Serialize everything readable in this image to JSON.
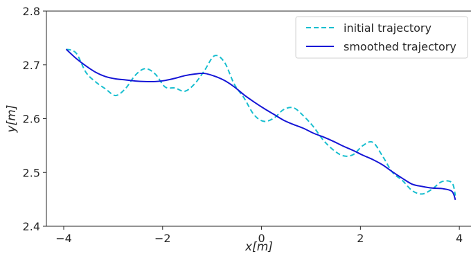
{
  "chart_data": {
    "type": "line",
    "title": "",
    "xlabel": "x[m]",
    "ylabel": "y[m]",
    "xlim": [
      -4.35,
      4.25
    ],
    "ylim": [
      2.4,
      2.8
    ],
    "xticks": [
      -4,
      -2,
      0,
      2,
      4
    ],
    "xtick_labels": [
      "−4",
      "−2",
      "0",
      "2",
      "4"
    ],
    "yticks": [
      2.4,
      2.5,
      2.6,
      2.7,
      2.8
    ],
    "ytick_labels": [
      "2.4",
      "2.5",
      "2.6",
      "2.7",
      "2.8"
    ],
    "grid": false,
    "legend_position": "top-right",
    "series": [
      {
        "name": "initial trajectory",
        "color": "#17becf",
        "style": "dashed",
        "x": [
          -3.95,
          -3.75,
          -3.55,
          -3.35,
          -3.15,
          -2.95,
          -2.75,
          -2.55,
          -2.35,
          -2.15,
          -1.95,
          -1.75,
          -1.55,
          -1.35,
          -1.15,
          -0.95,
          -0.75,
          -0.55,
          -0.35,
          -0.15,
          0.05,
          0.25,
          0.45,
          0.65,
          0.85,
          1.05,
          1.25,
          1.45,
          1.65,
          1.85,
          2.05,
          2.25,
          2.45,
          2.65,
          2.85,
          3.05,
          3.25,
          3.45,
          3.65,
          3.85,
          3.92
        ],
        "y": [
          2.729,
          2.722,
          2.686,
          2.668,
          2.655,
          2.643,
          2.656,
          2.681,
          2.693,
          2.683,
          2.659,
          2.657,
          2.651,
          2.665,
          2.69,
          2.717,
          2.705,
          2.664,
          2.638,
          2.607,
          2.595,
          2.601,
          2.617,
          2.62,
          2.605,
          2.585,
          2.56,
          2.542,
          2.531,
          2.533,
          2.55,
          2.556,
          2.53,
          2.5,
          2.485,
          2.466,
          2.46,
          2.469,
          2.483,
          2.481,
          2.457
        ]
      },
      {
        "name": "smoothed trajectory",
        "color": "#1515d6",
        "style": "solid",
        "x": [
          -3.95,
          -3.75,
          -3.55,
          -3.35,
          -3.15,
          -2.95,
          -2.75,
          -2.55,
          -2.35,
          -2.15,
          -1.95,
          -1.75,
          -1.55,
          -1.35,
          -1.15,
          -0.95,
          -0.75,
          -0.55,
          -0.35,
          -0.15,
          0.05,
          0.25,
          0.45,
          0.65,
          0.85,
          1.05,
          1.25,
          1.45,
          1.65,
          1.85,
          2.05,
          2.25,
          2.45,
          2.65,
          2.85,
          3.05,
          3.25,
          3.45,
          3.65,
          3.85,
          3.92
        ],
        "y": [
          2.729,
          2.712,
          2.698,
          2.686,
          2.678,
          2.674,
          2.672,
          2.67,
          2.669,
          2.669,
          2.671,
          2.675,
          2.68,
          2.683,
          2.684,
          2.679,
          2.671,
          2.659,
          2.644,
          2.631,
          2.619,
          2.608,
          2.597,
          2.589,
          2.582,
          2.573,
          2.566,
          2.558,
          2.549,
          2.541,
          2.532,
          2.524,
          2.514,
          2.501,
          2.489,
          2.478,
          2.474,
          2.471,
          2.47,
          2.465,
          2.449
        ]
      }
    ]
  }
}
